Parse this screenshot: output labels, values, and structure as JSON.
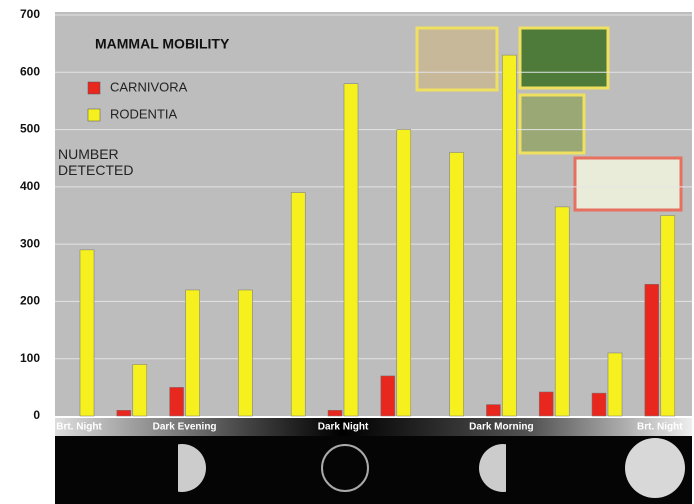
{
  "chart_data": {
    "type": "bar",
    "title": "MAMMAL MOBILITY",
    "y_label": "NUMBER DETECTED",
    "categories": [
      "Brt. Night",
      null,
      "Dark Evening",
      null,
      null,
      "Dark Night",
      null,
      null,
      "Dark Morning",
      null,
      null,
      "Brt. Night"
    ],
    "series": [
      {
        "name": "CARNIVORA",
        "color": "#e8281e",
        "values": [
          0,
          10,
          50,
          0,
          0,
          10,
          70,
          0,
          20,
          42,
          40,
          230
        ]
      },
      {
        "name": "RODENTIA",
        "color": "#f5f01e",
        "values": [
          290,
          90,
          220,
          220,
          390,
          580,
          500,
          460,
          630,
          365,
          110,
          350
        ]
      }
    ],
    "ylim": [
      0,
      700
    ],
    "yticks": [
      0,
      100,
      200,
      300,
      400,
      500,
      600,
      700
    ],
    "grid": true
  }
}
